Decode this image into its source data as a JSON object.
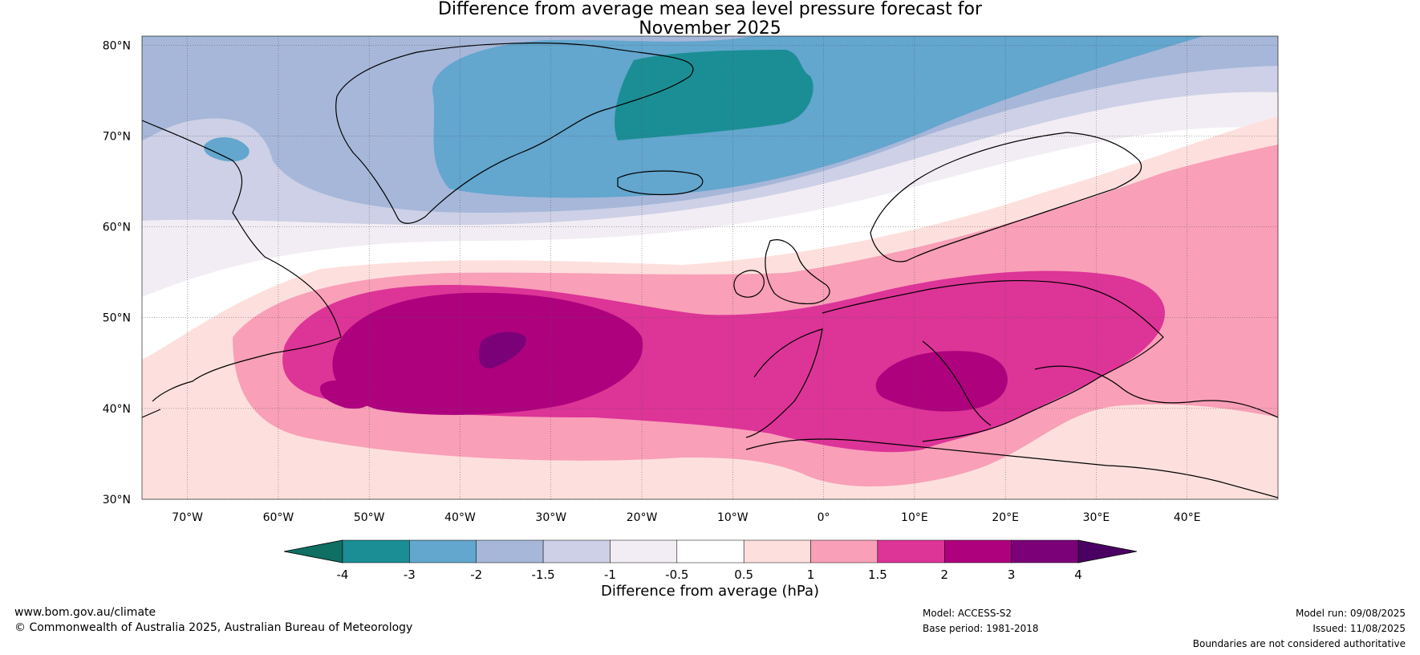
{
  "title": {
    "line1": "Difference from average mean sea level pressure forecast for",
    "line2": "November 2025"
  },
  "map": {
    "lon_range": [
      -75,
      50
    ],
    "lat_range": [
      30,
      81
    ],
    "lat_ticks": [
      {
        "value": 80,
        "label": "80°N"
      },
      {
        "value": 70,
        "label": "70°N"
      },
      {
        "value": 60,
        "label": "60°N"
      },
      {
        "value": 50,
        "label": "50°N"
      },
      {
        "value": 40,
        "label": "40°N"
      },
      {
        "value": 30,
        "label": "30°N"
      }
    ],
    "lon_ticks": [
      {
        "value": -70,
        "label": "70°W"
      },
      {
        "value": -60,
        "label": "60°W"
      },
      {
        "value": -50,
        "label": "50°W"
      },
      {
        "value": -40,
        "label": "40°W"
      },
      {
        "value": -30,
        "label": "30°W"
      },
      {
        "value": -20,
        "label": "20°W"
      },
      {
        "value": -10,
        "label": "10°W"
      },
      {
        "value": 0,
        "label": "0°"
      },
      {
        "value": 10,
        "label": "10°E"
      },
      {
        "value": 20,
        "label": "20°E"
      },
      {
        "value": 30,
        "label": "30°E"
      },
      {
        "value": 40,
        "label": "40°E"
      }
    ],
    "gridlines": true
  },
  "colorbar": {
    "label": "Difference from average (hPa)",
    "tick_labels": [
      "-4",
      "-3",
      "-2",
      "-1.5",
      "-1",
      "-0.5",
      "0.5",
      "1",
      "1.5",
      "2",
      "3",
      "4"
    ],
    "under_color": "#0e6f62",
    "over_color": "#4a0063",
    "band_colors": [
      "#1a8e94",
      "#63a6ce",
      "#a6b7d9",
      "#cdd0e6",
      "#f2edf4",
      "#ffffff",
      "#fde0dd",
      "#f99fb8",
      "#dd3497",
      "#ae017e",
      "#7a0177"
    ]
  },
  "footer": {
    "website": "www.bom.gov.au/climate",
    "copyright": "© Commonwealth of Australia 2025, Australian Bureau of Meteorology",
    "model": "Model: ACCESS-S2",
    "base_period": "Base period: 1981-2018",
    "model_run": "Model run: 09/08/2025",
    "issued": "Issued: 11/08/2025",
    "disclaimer": "Boundaries are not considered authoritative"
  }
}
